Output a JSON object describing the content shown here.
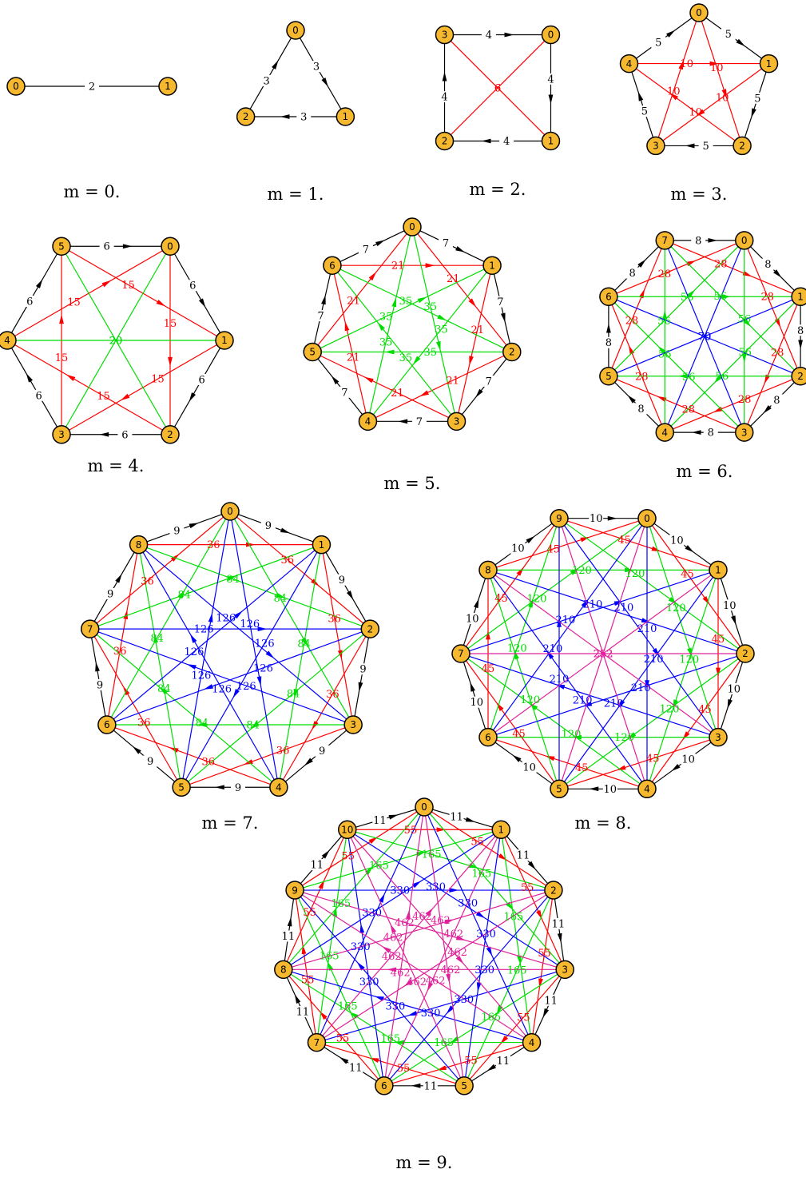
{
  "diagrams": [
    {
      "m": 0,
      "caption": "m = 0.",
      "nodes": [
        "1",
        "0"
      ]
    },
    {
      "m": 1,
      "caption": "m = 1.",
      "nodes": [
        "0",
        "1",
        "2"
      ]
    },
    {
      "m": 2,
      "caption": "m = 2.",
      "nodes": [
        "0",
        "1",
        "2",
        "3"
      ]
    },
    {
      "m": 3,
      "caption": "m = 3.",
      "nodes": [
        "0",
        "1",
        "2",
        "3",
        "4"
      ]
    },
    {
      "m": 4,
      "caption": "m = 4.",
      "nodes": [
        "0",
        "1",
        "2",
        "3",
        "4",
        "5"
      ]
    },
    {
      "m": 5,
      "caption": "m = 5.",
      "nodes": [
        "0",
        "1",
        "2",
        "3",
        "4",
        "5",
        "6"
      ]
    },
    {
      "m": 6,
      "caption": "m = 6.",
      "nodes": [
        "0",
        "1",
        "2",
        "3",
        "4",
        "5",
        "6",
        "7"
      ]
    },
    {
      "m": 7,
      "caption": "m = 7.",
      "nodes": [
        "0",
        "1",
        "2",
        "3",
        "4",
        "5",
        "6",
        "7",
        "8"
      ]
    },
    {
      "m": 8,
      "caption": "m = 8.",
      "nodes": [
        "0",
        "1",
        "2",
        "3",
        "4",
        "5",
        "6",
        "7",
        "8",
        "9"
      ]
    },
    {
      "m": 9,
      "caption": "m = 9.",
      "nodes": [
        "0",
        "1",
        "2",
        "3",
        "4",
        "5",
        "6",
        "7",
        "8",
        "9",
        "10"
      ]
    }
  ],
  "edge_weights": {
    "0": [
      "2"
    ],
    "1": [
      "3"
    ],
    "2": [
      "4",
      "6"
    ],
    "3": [
      "5",
      "10"
    ],
    "4": [
      "6",
      "15",
      "20"
    ],
    "5": [
      "7",
      "21",
      "35"
    ],
    "6": [
      "8",
      "28",
      "56",
      "70"
    ],
    "7": [
      "9",
      "36",
      "84",
      "126"
    ],
    "8": [
      "10",
      "45",
      "120",
      "210",
      "252"
    ],
    "9": [
      "11",
      "55",
      "165",
      "330",
      "462"
    ]
  },
  "step_colors": [
    "#000000",
    "#ff0000",
    "#00dd00",
    "#0000ff",
    "#e0209a"
  ],
  "node_fill": "#f5b82e",
  "node_stroke": "#000000"
}
